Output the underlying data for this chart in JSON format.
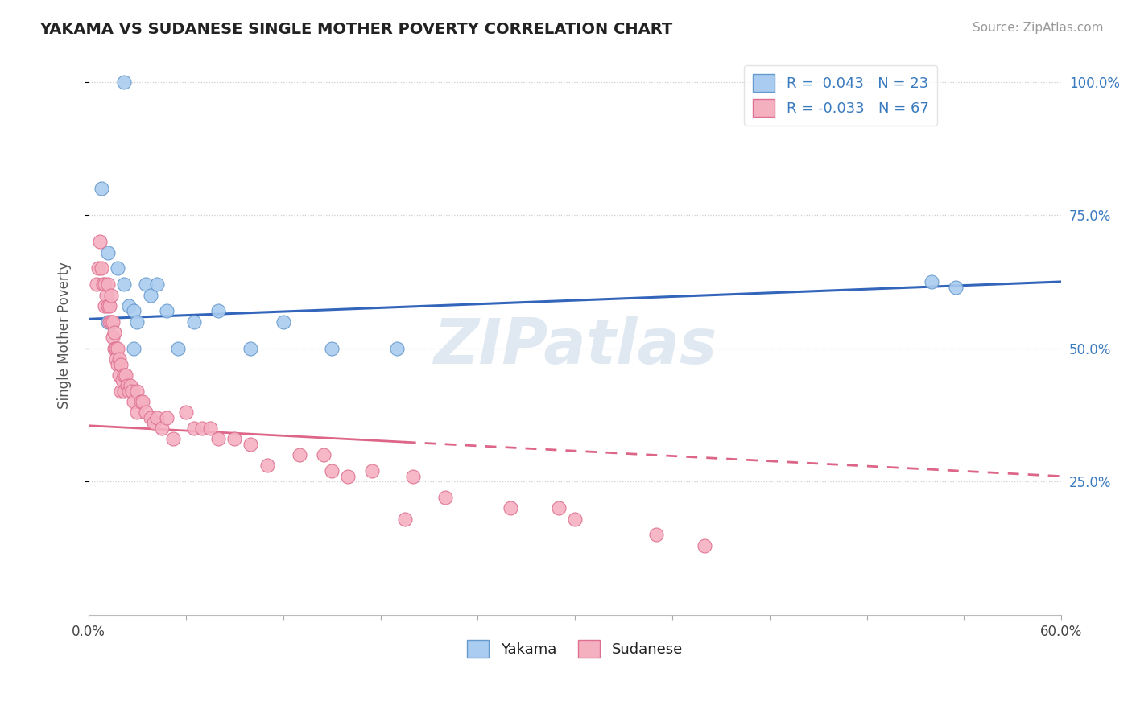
{
  "title": "YAKAMA VS SUDANESE SINGLE MOTHER POVERTY CORRELATION CHART",
  "source_text": "Source: ZipAtlas.com",
  "ylabel": "Single Mother Poverty",
  "xlim": [
    0.0,
    0.6
  ],
  "ylim": [
    0.0,
    1.05
  ],
  "xticks": [
    0.0,
    0.06,
    0.12,
    0.18,
    0.24,
    0.3,
    0.36,
    0.42,
    0.48,
    0.54,
    0.6
  ],
  "xticklabels": [
    "0.0%",
    "",
    "",
    "",
    "",
    "",
    "",
    "",
    "",
    "",
    "60.0%"
  ],
  "ytick_positions": [
    0.25,
    0.5,
    0.75,
    1.0
  ],
  "ytick_labels": [
    "25.0%",
    "50.0%",
    "75.0%",
    "100.0%"
  ],
  "background_color": "#ffffff",
  "watermark": "ZIPatlas",
  "watermark_color": "#c8d8e8",
  "yakama_color": "#aaccf0",
  "sudanese_color": "#f5b0c0",
  "yakama_edge_color": "#6699cc",
  "sudanese_edge_color": "#dd7090",
  "yakama_line_color": "#3366bb",
  "sudanese_line_color": "#dd6688",
  "R_yakama": 0.043,
  "N_yakama": 23,
  "R_sudanese": -0.033,
  "N_sudanese": 67,
  "yakama_line_x0": 0.0,
  "yakama_line_y0": 0.555,
  "yakama_line_x1": 0.6,
  "yakama_line_y1": 0.625,
  "sudanese_line_x0": 0.0,
  "sudanese_line_y0": 0.355,
  "sudanese_line_x1": 0.6,
  "sudanese_line_y1": 0.26,
  "yakama_x": [
    0.022,
    0.008,
    0.012,
    0.018,
    0.022,
    0.025,
    0.028,
    0.03,
    0.035,
    0.038,
    0.042,
    0.048,
    0.055,
    0.065,
    0.08,
    0.1,
    0.12,
    0.15,
    0.19,
    0.52,
    0.535,
    0.012,
    0.028
  ],
  "yakama_y": [
    1.0,
    0.8,
    0.68,
    0.65,
    0.62,
    0.58,
    0.57,
    0.55,
    0.62,
    0.6,
    0.62,
    0.57,
    0.5,
    0.55,
    0.57,
    0.5,
    0.55,
    0.5,
    0.5,
    0.625,
    0.615,
    0.55,
    0.5
  ],
  "sudanese_x": [
    0.005,
    0.006,
    0.007,
    0.008,
    0.009,
    0.01,
    0.01,
    0.011,
    0.012,
    0.012,
    0.013,
    0.013,
    0.014,
    0.014,
    0.015,
    0.015,
    0.016,
    0.016,
    0.017,
    0.017,
    0.018,
    0.018,
    0.019,
    0.019,
    0.02,
    0.02,
    0.021,
    0.022,
    0.022,
    0.023,
    0.024,
    0.025,
    0.026,
    0.027,
    0.028,
    0.03,
    0.03,
    0.032,
    0.033,
    0.035,
    0.038,
    0.04,
    0.042,
    0.045,
    0.048,
    0.052,
    0.06,
    0.065,
    0.07,
    0.075,
    0.08,
    0.09,
    0.1,
    0.11,
    0.13,
    0.145,
    0.15,
    0.16,
    0.175,
    0.2,
    0.22,
    0.26,
    0.3,
    0.35,
    0.38,
    0.29,
    0.195
  ],
  "sudanese_y": [
    0.62,
    0.65,
    0.7,
    0.65,
    0.62,
    0.58,
    0.62,
    0.6,
    0.62,
    0.58,
    0.58,
    0.55,
    0.6,
    0.55,
    0.55,
    0.52,
    0.5,
    0.53,
    0.5,
    0.48,
    0.5,
    0.47,
    0.45,
    0.48,
    0.42,
    0.47,
    0.44,
    0.45,
    0.42,
    0.45,
    0.43,
    0.42,
    0.43,
    0.42,
    0.4,
    0.42,
    0.38,
    0.4,
    0.4,
    0.38,
    0.37,
    0.36,
    0.37,
    0.35,
    0.37,
    0.33,
    0.38,
    0.35,
    0.35,
    0.35,
    0.33,
    0.33,
    0.32,
    0.28,
    0.3,
    0.3,
    0.27,
    0.26,
    0.27,
    0.26,
    0.22,
    0.2,
    0.18,
    0.15,
    0.13,
    0.2,
    0.18
  ],
  "grid_color": "#cccccc",
  "grid_linestyle": "dotted"
}
